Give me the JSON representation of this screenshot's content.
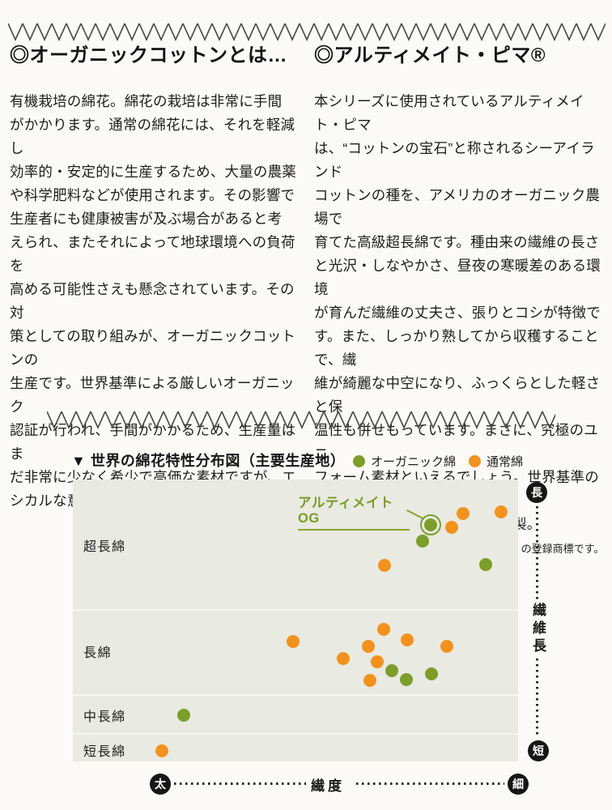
{
  "articles": {
    "organic": {
      "title": "◎オーガニックコットンとは…",
      "body": "有機栽培の綿花。綿花の栽培は非常に手間\nがかかります。通常の綿花には、それを軽減し\n効率的・安定的に生産するため、大量の農薬\nや科学肥料などが使用されます。その影響で\n生産者にも健康被害が及ぶ場合があると考\nえられ、またそれによって地球環境への負荷を\n高める可能性さえも懸念されています。その対\n策としての取り組みが、オーガニックコットンの\n生産です。世界基準による厳しいオーガニック\n認証が行われ、手間がかかるため、生産量はま\nだ非常に少なく希少で高価な素材ですが、エ\nシカルな意味で注目が高まっています。"
    },
    "ultimate": {
      "title": "◎アルティメイト・ピマ®",
      "body": "本シリーズに使用されているアルティメイト・ピマ\nは、“コットンの宝石”と称されるシーアイランド\nコットンの種を、アメリカのオーガニック農場で\n育てた高級超長綿です。種由来の繊維の長さ\nと光沢・しなやかさ、昼夜の寒暖差のある環境\nが育んだ繊維の丈夫さ、張りとコシが特徴で\nす。また、しっかり熟してから収穫することで、繊\n維が綺麗な中空になり、ふっくらとした軽さと保\n温性も併せもっています。まさに、究極のユニ\nフォーム素材といえるでしょう。世界基準のオー\nガニック認証GOTS取得。日本製。",
      "note": "※アルティメイト・ピマ®は大正紡績（株）の登録商標です。"
    }
  },
  "chart_data": {
    "type": "scatter",
    "title": "▼ 世界の綿花特性分布図（主要生産地）",
    "xlabel": "繊度",
    "ylabel": "繊維長",
    "x_axis_ends": {
      "left": "太",
      "right": "細"
    },
    "y_axis_ends": {
      "top": "長",
      "bottom": "短"
    },
    "axes_note_pct_scale": "x_pct: 0=太(left) to 100=細(right); y_pct: 0=長(top) to 100=短(bottom)",
    "bands": [
      {
        "label": "超長綿",
        "label_y_pct": 23.3,
        "separator_below_y_pct": 46.0
      },
      {
        "label": "長綿",
        "label_y_pct": 60.9,
        "separator_below_y_pct": 76.1
      },
      {
        "label": "中長綿",
        "label_y_pct": 83.6,
        "separator_below_y_pct": 89.9
      },
      {
        "label": "短長綿",
        "label_y_pct": 96.0
      }
    ],
    "legend": [
      {
        "name": "オーガニック綿",
        "color": "#7d9e2a"
      },
      {
        "name": "通常綿",
        "color": "#f2921e"
      }
    ],
    "annotation": {
      "label": "アルティメイトOG",
      "color": "#7a9b25"
    },
    "series": [
      {
        "name": "オーガニック綿",
        "color": "#7d9e2a",
        "points": [
          {
            "x_pct": 80.4,
            "y_pct": 16.1,
            "ringed": true,
            "label": "アルティメイトOG"
          },
          {
            "x_pct": 78.5,
            "y_pct": 21.8
          },
          {
            "x_pct": 92.7,
            "y_pct": 30.2
          },
          {
            "x_pct": 71.6,
            "y_pct": 67.8
          },
          {
            "x_pct": 80.5,
            "y_pct": 69.0
          },
          {
            "x_pct": 74.9,
            "y_pct": 71.0
          },
          {
            "x_pct": 24.9,
            "y_pct": 83.6
          }
        ]
      },
      {
        "name": "通常綿",
        "color": "#f2921e",
        "points": [
          {
            "x_pct": 87.6,
            "y_pct": 12.1
          },
          {
            "x_pct": 96.2,
            "y_pct": 11.5
          },
          {
            "x_pct": 85.1,
            "y_pct": 17.0
          },
          {
            "x_pct": 70.0,
            "y_pct": 30.5
          },
          {
            "x_pct": 69.8,
            "y_pct": 53.2
          },
          {
            "x_pct": 49.5,
            "y_pct": 57.5
          },
          {
            "x_pct": 75.1,
            "y_pct": 56.9
          },
          {
            "x_pct": 66.4,
            "y_pct": 59.2
          },
          {
            "x_pct": 84.0,
            "y_pct": 59.2
          },
          {
            "x_pct": 60.7,
            "y_pct": 63.5
          },
          {
            "x_pct": 68.4,
            "y_pct": 64.7
          },
          {
            "x_pct": 66.7,
            "y_pct": 71.3
          },
          {
            "x_pct": 20.0,
            "y_pct": 96.3
          }
        ]
      }
    ],
    "colors": {
      "plot_bg": "#e9eae2",
      "axis_marker_bg": "#161614"
    }
  }
}
